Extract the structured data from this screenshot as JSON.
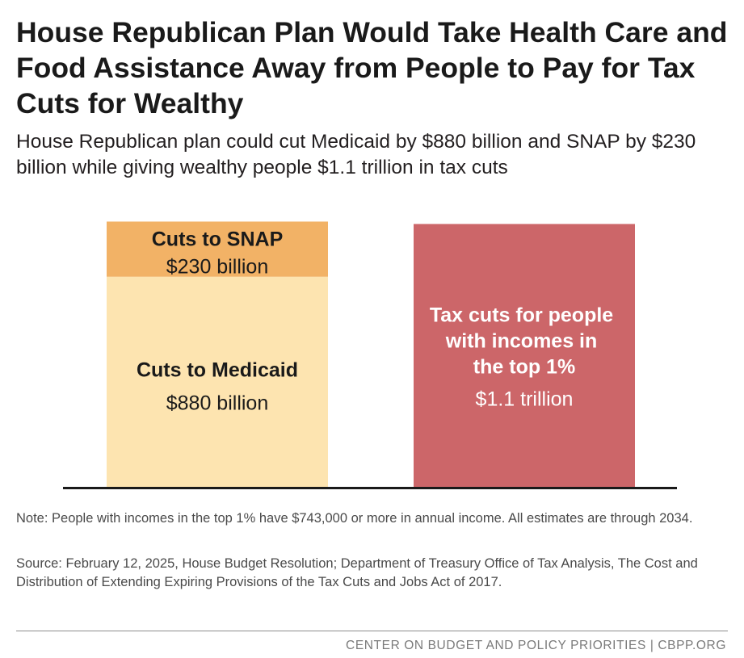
{
  "title": "House Republican Plan Would Take Health Care and Food Assistance Away from People to Pay for Tax Cuts for Wealthy",
  "subtitle": "House Republican plan could cut Medicaid by $880 billion and SNAP by $230 billion while giving wealthy people $1.1 trillion in tax cuts",
  "note": "Note: People with incomes in the top 1% have $743,000 or more in annual income. All estimates are through 2034.",
  "source": "Source: February 12, 2025, House Budget Resolution; Department of Treasury Office of Tax Analysis, The Cost and Distribution of Extending Expiring Provisions of the Tax Cuts and Jobs Act of 2017.",
  "footer": "CENTER ON BUDGET AND POLICY PRIORITIES | CBPP.ORG",
  "colors": {
    "medicaid": "#fde4b0",
    "snap": "#f2b266",
    "tax_cuts": "#cc6669",
    "baseline": "#1a1a1a"
  },
  "chart_data": {
    "type": "bar",
    "stacked": true,
    "unit": "billion dollars",
    "ylim": [
      0,
      1125
    ],
    "bars": [
      {
        "name": "cuts",
        "segments": [
          {
            "key": "medicaid",
            "label": "Cuts to Medicaid",
            "value_label": "$880 billion",
            "value": 880
          },
          {
            "key": "snap",
            "label": "Cuts to SNAP",
            "value_label": "$230 billion",
            "value": 230
          }
        ]
      },
      {
        "name": "tax-cuts",
        "segments": [
          {
            "key": "tax_cuts",
            "label": "Tax cuts for people with incomes in the top 1%",
            "label_lines": [
              "Tax cuts for people",
              "with incomes in",
              "the top 1%"
            ],
            "value_label": "$1.1 trillion",
            "value": 1100
          }
        ]
      }
    ]
  }
}
